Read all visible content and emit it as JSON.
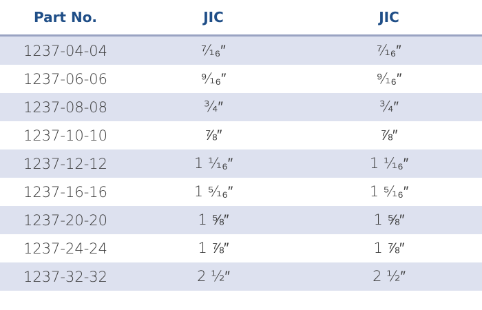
{
  "table": {
    "headers": [
      "Part No.",
      "JIC",
      "JIC"
    ],
    "rows": [
      [
        "1237-04-04",
        "⁷⁄₁₆″",
        "⁷⁄₁₆″"
      ],
      [
        "1237-06-06",
        "⁹⁄₁₆″",
        "⁹⁄₁₆″"
      ],
      [
        "1237-08-08",
        "¾″",
        "¾″"
      ],
      [
        "1237-10-10",
        "⅞″",
        "⅞″"
      ],
      [
        "1237-12-12",
        "1 ¹⁄₁₆″",
        "1 ¹⁄₁₆″"
      ],
      [
        "1237-16-16",
        "1 ⁵⁄₁₆″",
        "1 ⁵⁄₁₆″"
      ],
      [
        "1237-20-20",
        "1 ⅝″",
        "1 ⅝″"
      ],
      [
        "1237-24-24",
        "1 ⅞″",
        "1 ⅞″"
      ],
      [
        "1237-32-32",
        "2 ½″",
        "2 ½″"
      ]
    ]
  }
}
